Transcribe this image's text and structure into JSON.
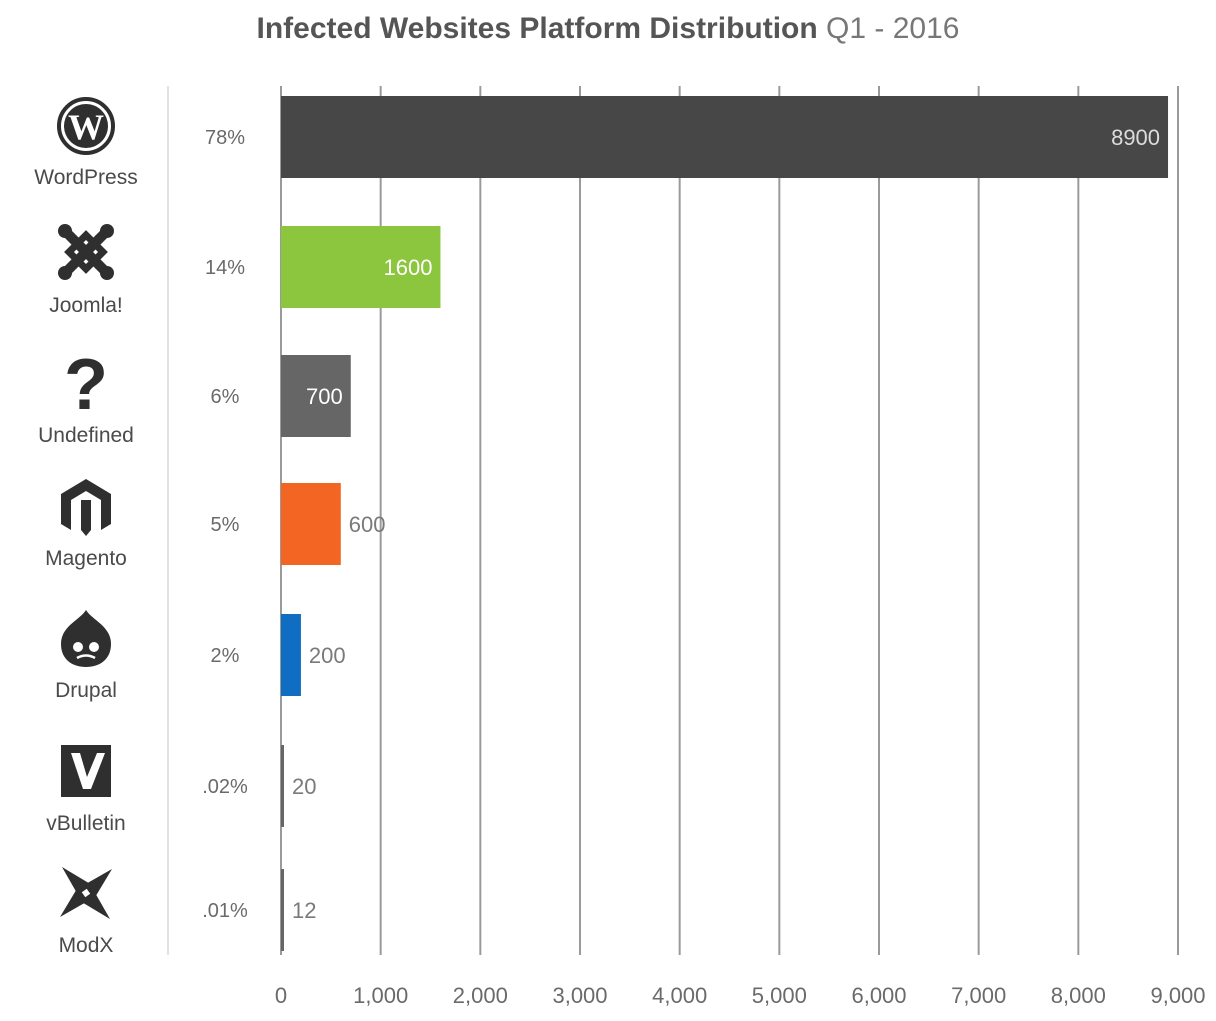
{
  "title_main": "Infected Websites Platform Distribution",
  "title_sub": "Q1 - 2016",
  "chart_data": {
    "type": "bar",
    "orientation": "horizontal",
    "title": "Infected Websites Platform Distribution Q1 - 2016",
    "xlabel": "",
    "ylabel": "",
    "xlim": [
      0,
      9000
    ],
    "x_ticks": [
      "0",
      "1,000",
      "2,000",
      "3,000",
      "4,000",
      "5,000",
      "6,000",
      "7,000",
      "8,000",
      "9,000"
    ],
    "grid": "vertical",
    "categories": [
      "WordPress",
      "Joomla!",
      "Undefined",
      "Magento",
      "Drupal",
      "vBulletin",
      "ModX"
    ],
    "icons": [
      "wordpress-icon",
      "joomla-icon",
      "question-mark-icon",
      "magento-icon",
      "drupal-icon",
      "vbulletin-icon",
      "modx-icon"
    ],
    "percents": [
      "78%",
      "14%",
      "6%",
      "5%",
      "2%",
      ".02%",
      ".01%"
    ],
    "values": [
      8900,
      1600,
      700,
      600,
      200,
      20,
      12
    ],
    "value_labels": [
      "8900",
      "1600",
      "700",
      "600",
      "200",
      "20",
      "12"
    ],
    "colors": [
      "#474747",
      "#8cc63f",
      "#666666",
      "#f26522",
      "#0f6ec1",
      "#666666",
      "#666666"
    ]
  }
}
